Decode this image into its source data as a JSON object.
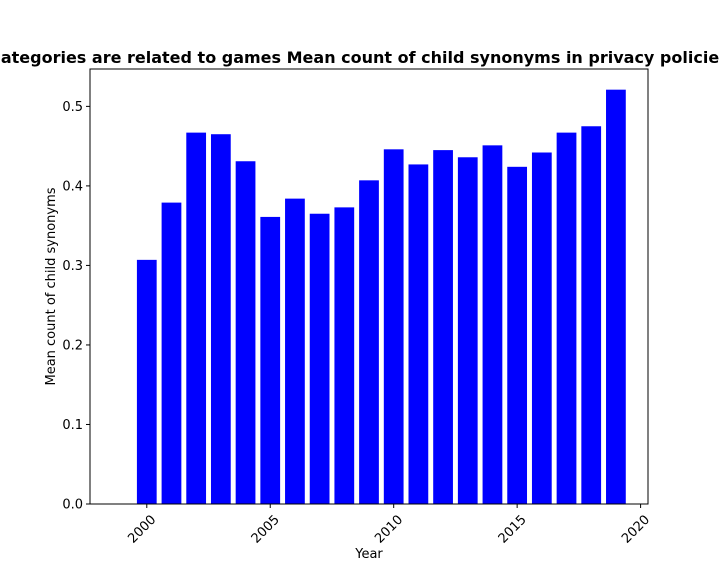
{
  "chart_data": {
    "type": "bar",
    "title": "ategories are related to games Mean count of child synonyms in privacy policie",
    "xlabel": "Year",
    "ylabel": "Mean count of child synonyms",
    "x": [
      2000,
      2001,
      2002,
      2003,
      2004,
      2005,
      2006,
      2007,
      2008,
      2009,
      2010,
      2011,
      2012,
      2013,
      2014,
      2015,
      2016,
      2017,
      2018,
      2019
    ],
    "values": [
      0.307,
      0.379,
      0.467,
      0.465,
      0.431,
      0.361,
      0.384,
      0.365,
      0.373,
      0.407,
      0.446,
      0.427,
      0.445,
      0.436,
      0.451,
      0.424,
      0.442,
      0.467,
      0.475,
      0.521
    ],
    "xlim": [
      1997.7,
      2020.3
    ],
    "ylim": [
      0,
      0.547
    ],
    "xticks": [
      "2000",
      "2005",
      "2010",
      "2015",
      "2020"
    ],
    "yticks": [
      "0.0",
      "0.1",
      "0.2",
      "0.3",
      "0.4",
      "0.5"
    ],
    "bar_color": "#0000ff",
    "grid": false,
    "legend": "none"
  }
}
